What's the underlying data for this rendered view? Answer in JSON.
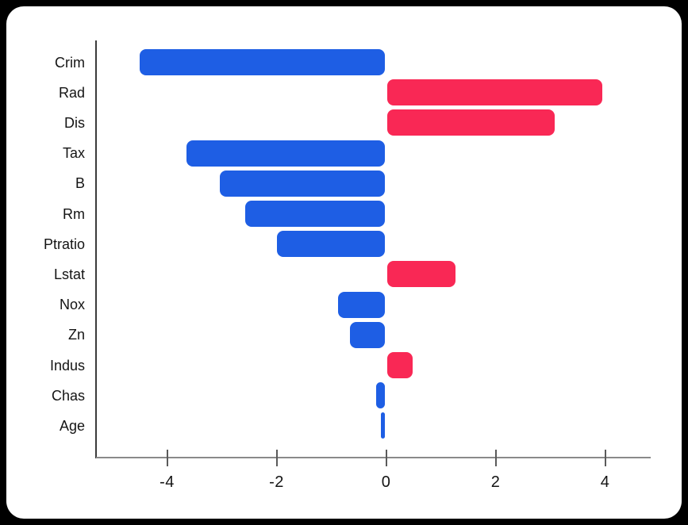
{
  "chart_data": {
    "type": "bar",
    "orientation": "horizontal",
    "title": "",
    "xlabel": "",
    "ylabel": "",
    "categories": [
      "Crim",
      "Rad",
      "Dis",
      "Tax",
      "B",
      "Rm",
      "Ptratio",
      "Lstat",
      "Nox",
      "Zn",
      "Indus",
      "Chas",
      "Age"
    ],
    "values": [
      -4.5,
      3.95,
      3.08,
      -3.65,
      -3.03,
      -2.57,
      -2.0,
      1.27,
      -0.88,
      -0.66,
      0.49,
      -0.18,
      -0.1
    ],
    "x_ticks": [
      -4,
      -2,
      0,
      2,
      4
    ],
    "x_tick_labels": [
      "-4",
      "-2",
      "0",
      "2",
      "4"
    ],
    "xlim": [
      -5.3,
      4.85
    ],
    "grid": false,
    "legend": null,
    "colors": {
      "positive_bar": "#F92855",
      "negative_bar": "#1E5EE4",
      "axis_spine_left": "#3b3b3b",
      "axis_spine_bottom": "#8a8a8a",
      "tick_mark": "#5a5a5a",
      "text": "#141414",
      "card_background": "#FFFFFF",
      "page_background": "#000000"
    }
  }
}
